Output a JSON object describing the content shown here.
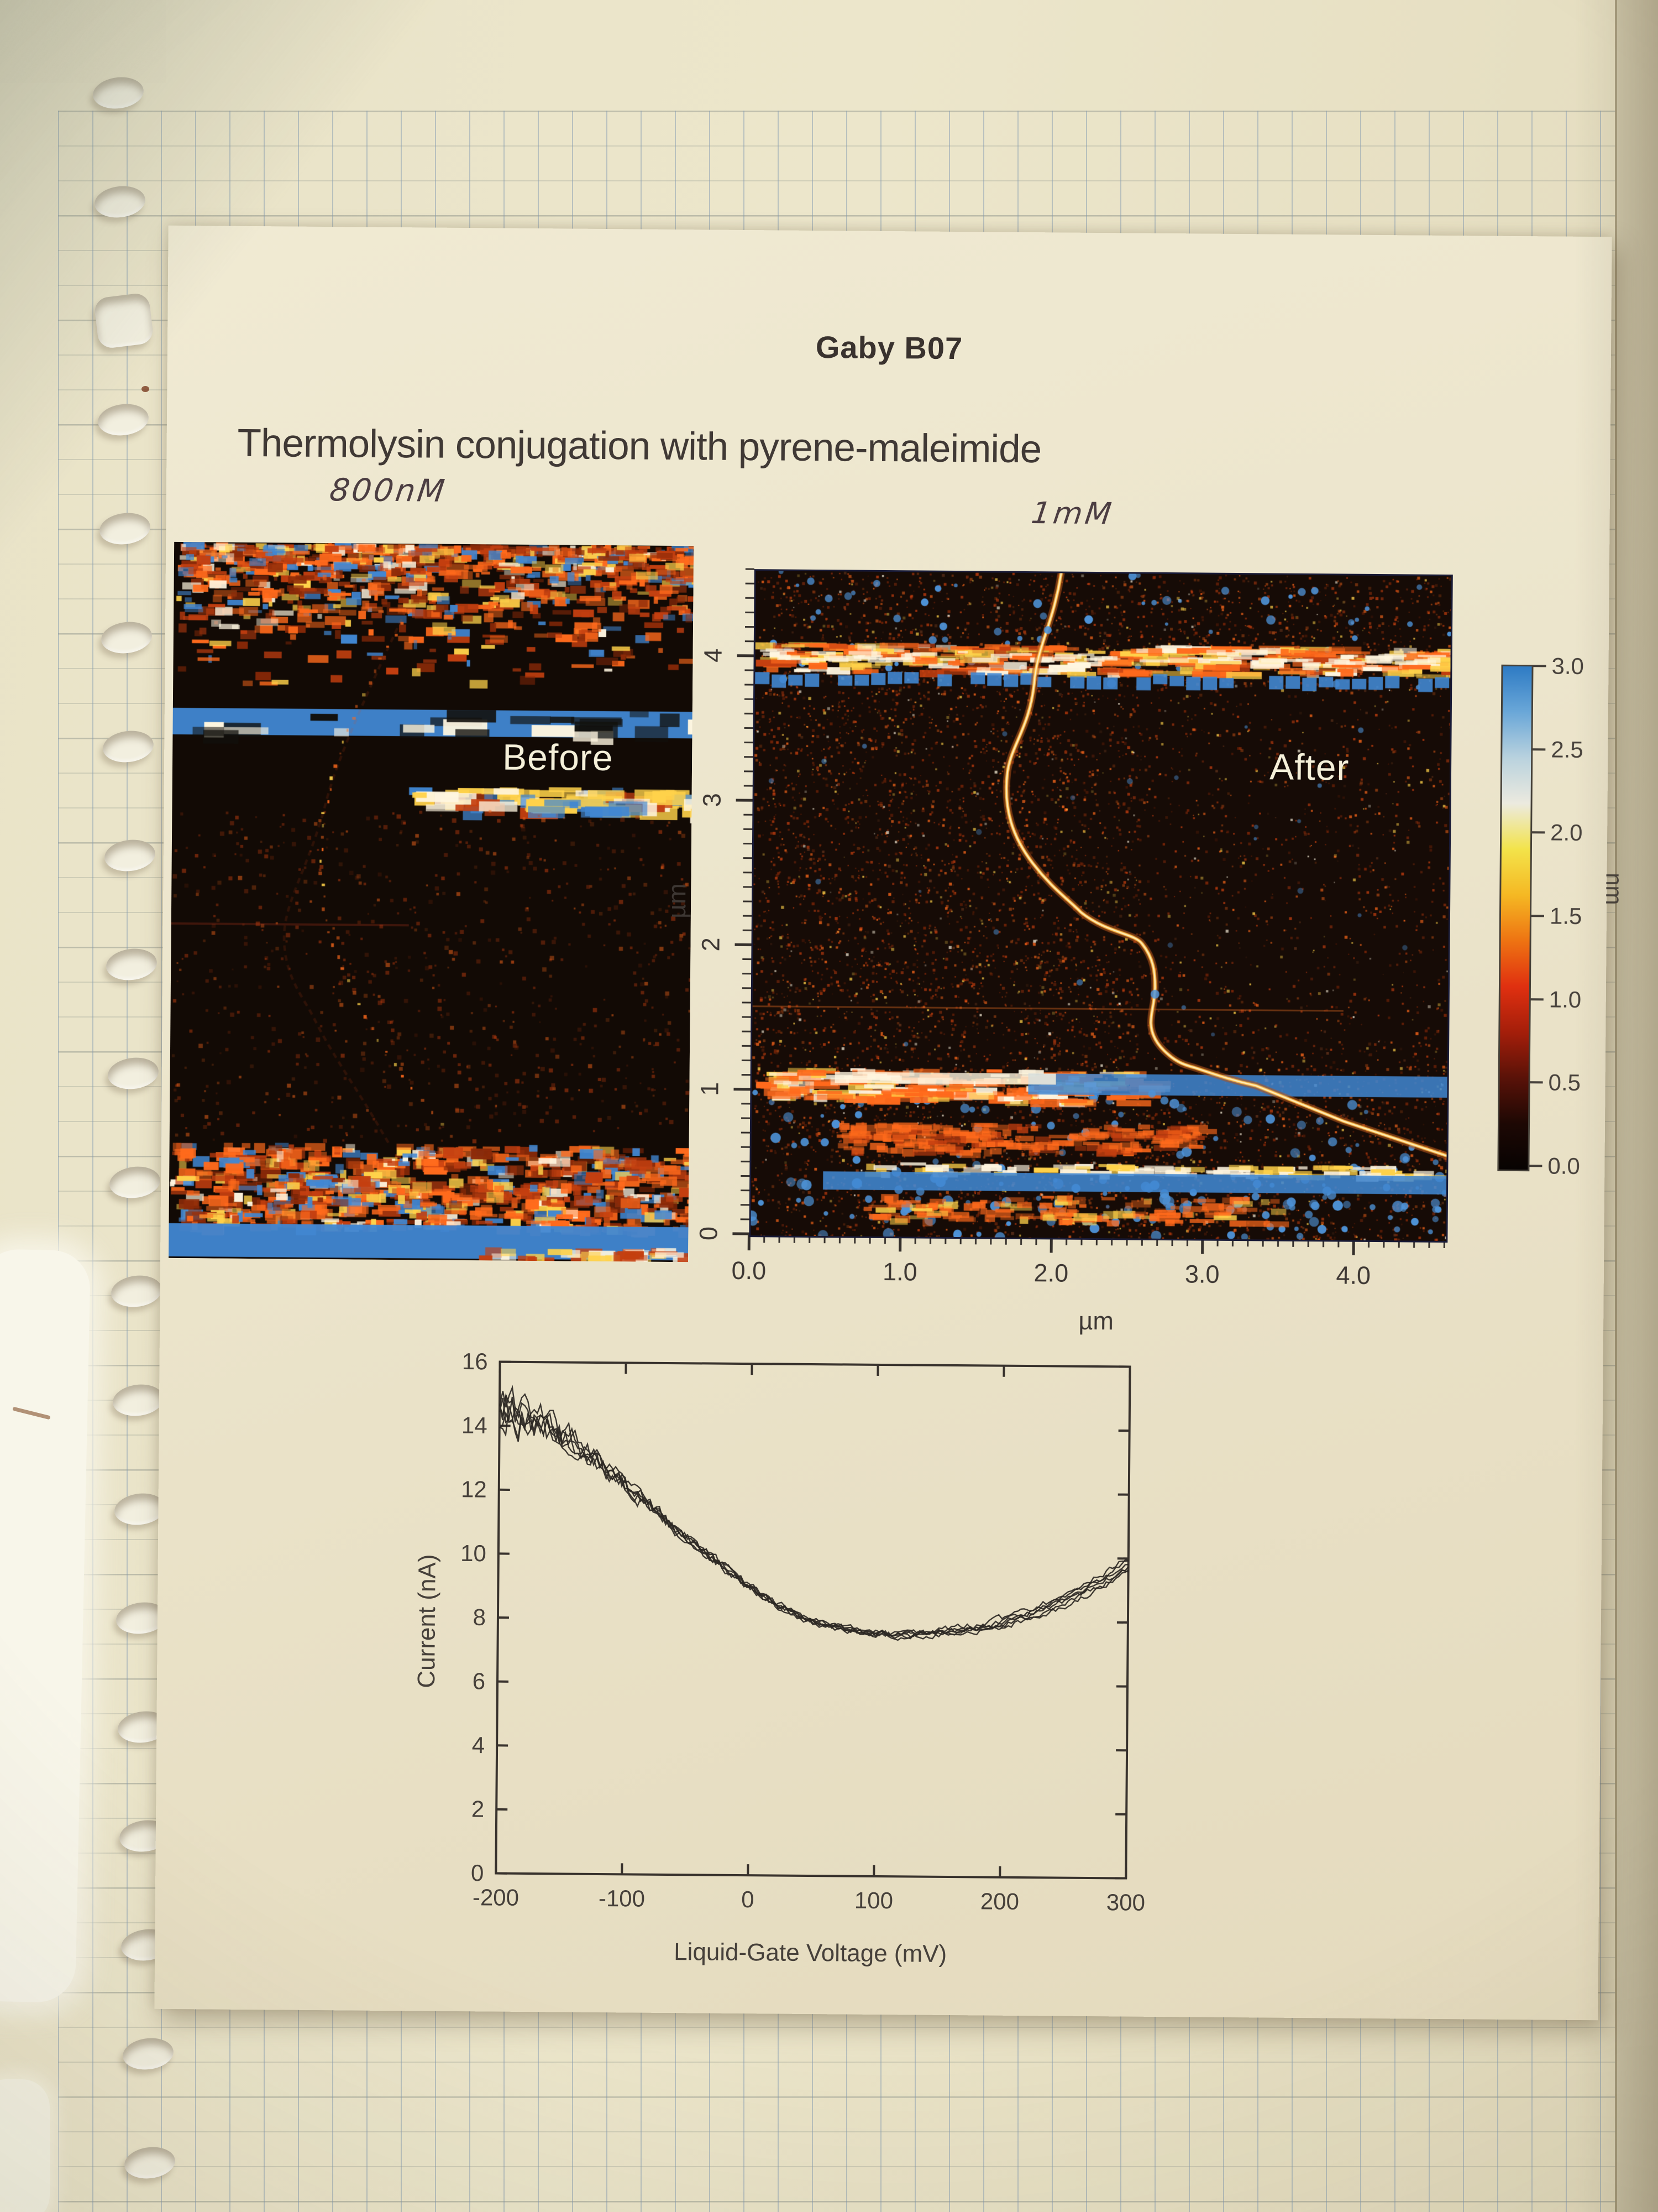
{
  "document": {
    "title": "Gaby B07",
    "subtitle": "Thermolysin conjugation with pyrene-maleimide",
    "annotation_left": "800nM",
    "annotation_right": "1mM"
  },
  "afm_before": {
    "label": "Before"
  },
  "afm_after": {
    "label": "After",
    "x_axis": {
      "ticks": [
        "0.0",
        "1.0",
        "2.0",
        "3.0",
        "4.0"
      ],
      "label": "µm",
      "range": [
        0,
        4.6
      ]
    },
    "y_axis": {
      "ticks": [
        "0",
        "1",
        "2",
        "3",
        "4"
      ],
      "label": "µm",
      "range": [
        0,
        4.6
      ]
    }
  },
  "colorbar": {
    "ticks": [
      "3.0",
      "2.5",
      "2.0",
      "1.5",
      "1.0",
      "0.5",
      "0.0"
    ],
    "unit": "nm",
    "gradient": [
      "#2e7bc4",
      "#6aa7d8",
      "#b9d2de",
      "#eceadf",
      "#f3e34a",
      "#f5b823",
      "#ee7312",
      "#e03010",
      "#a41e0a",
      "#591208",
      "#1d0804",
      "#070302"
    ]
  },
  "chart_data": {
    "type": "line",
    "title": "",
    "xlabel": "Liquid-Gate Voltage (mV)",
    "ylabel": "Current (nA)",
    "xlim": [
      -200,
      300
    ],
    "ylim": [
      0,
      16
    ],
    "xticks": [
      -200,
      -100,
      0,
      100,
      200,
      300
    ],
    "yticks": [
      0,
      2,
      4,
      6,
      8,
      10,
      12,
      14,
      16
    ],
    "grid": false,
    "legend": "none",
    "num_traces": 6,
    "noise": {
      "left_amplitude": 0.85,
      "base_amplitude": 0.12,
      "decay_mv": 70
    },
    "x": [
      -200,
      -180,
      -160,
      -140,
      -120,
      -100,
      -80,
      -60,
      -40,
      -20,
      0,
      20,
      40,
      60,
      80,
      100,
      120,
      140,
      160,
      180,
      200,
      220,
      240,
      260,
      280,
      300
    ],
    "y": [
      14.6,
      14.3,
      13.9,
      13.5,
      12.9,
      12.2,
      11.5,
      10.8,
      10.2,
      9.6,
      9.0,
      8.5,
      8.1,
      7.85,
      7.7,
      7.6,
      7.55,
      7.6,
      7.7,
      7.8,
      7.95,
      8.2,
      8.5,
      8.9,
      9.3,
      9.8
    ]
  },
  "afm_palette": {
    "bg_before": "#120a05",
    "bg_after": "#160b06",
    "speckle_orange": "#ff6a1c",
    "speckle_red": "#c43f10",
    "speckle_deep": "#8c2a08",
    "speckle_yellow": "#ffd24a",
    "speckle_white": "#fff6e0",
    "stripe_blue": "#4187d2",
    "wire_glow": "#ffb83d",
    "wire_core": "#fff3c8"
  }
}
